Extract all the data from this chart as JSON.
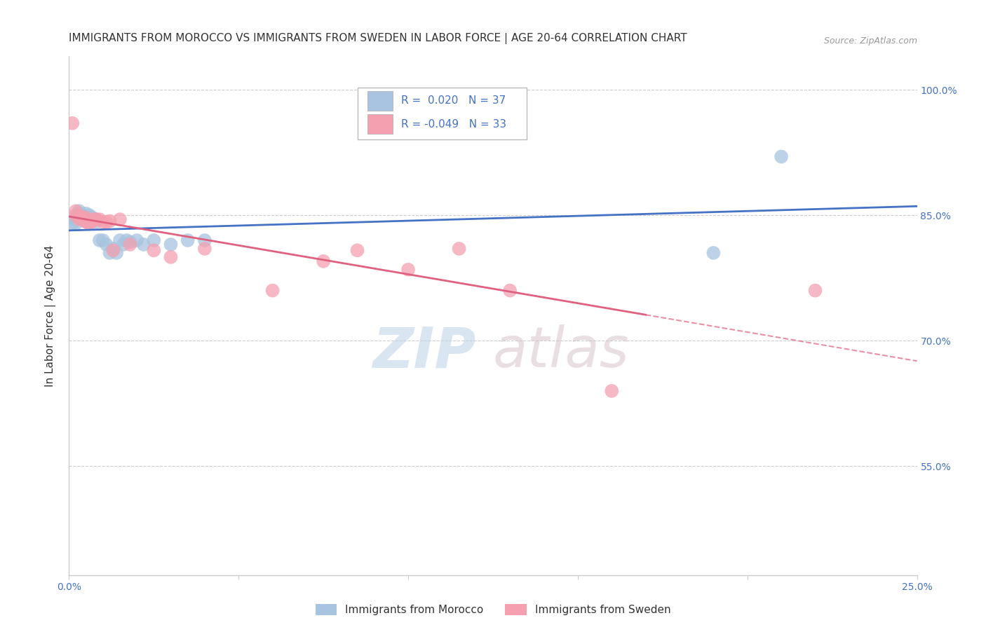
{
  "title": "IMMIGRANTS FROM MOROCCO VS IMMIGRANTS FROM SWEDEN IN LABOR FORCE | AGE 20-64 CORRELATION CHART",
  "source": "Source: ZipAtlas.com",
  "ylabel": "In Labor Force | Age 20-64",
  "xlim": [
    0.0,
    0.25
  ],
  "ylim": [
    0.42,
    1.04
  ],
  "yticks_right": [
    0.55,
    0.7,
    0.85,
    1.0
  ],
  "ytick_labels_right": [
    "55.0%",
    "70.0%",
    "85.0%",
    "100.0%"
  ],
  "morocco_color": "#a8c4e0",
  "sweden_color": "#f4a0b0",
  "trend_morocco_color": "#4472c4",
  "trend_sweden_color": "#e06080",
  "legend_r_morocco": "0.020",
  "legend_n_morocco": "37",
  "legend_r_sweden": "-0.049",
  "legend_n_sweden": "33",
  "legend_label_morocco": "Immigrants from Morocco",
  "legend_label_sweden": "Immigrants from Sweden",
  "morocco_x": [
    0.001,
    0.002,
    0.002,
    0.003,
    0.003,
    0.003,
    0.004,
    0.004,
    0.004,
    0.005,
    0.005,
    0.005,
    0.006,
    0.006,
    0.006,
    0.007,
    0.007,
    0.008,
    0.008,
    0.009,
    0.01,
    0.011,
    0.012,
    0.013,
    0.014,
    0.015,
    0.016,
    0.017,
    0.018,
    0.02,
    0.022,
    0.025,
    0.03,
    0.035,
    0.04,
    0.19,
    0.21
  ],
  "morocco_y": [
    0.84,
    0.845,
    0.84,
    0.85,
    0.852,
    0.855,
    0.845,
    0.848,
    0.85,
    0.843,
    0.847,
    0.852,
    0.843,
    0.847,
    0.85,
    0.845,
    0.847,
    0.845,
    0.842,
    0.82,
    0.82,
    0.815,
    0.805,
    0.81,
    0.805,
    0.82,
    0.815,
    0.82,
    0.818,
    0.82,
    0.815,
    0.82,
    0.815,
    0.82,
    0.82,
    0.805,
    0.92
  ],
  "sweden_x": [
    0.001,
    0.002,
    0.002,
    0.003,
    0.003,
    0.004,
    0.004,
    0.005,
    0.005,
    0.005,
    0.006,
    0.006,
    0.007,
    0.007,
    0.008,
    0.009,
    0.01,
    0.011,
    0.012,
    0.013,
    0.015,
    0.018,
    0.025,
    0.03,
    0.04,
    0.06,
    0.075,
    0.085,
    0.1,
    0.115,
    0.13,
    0.16,
    0.22
  ],
  "sweden_y": [
    0.96,
    0.85,
    0.855,
    0.845,
    0.848,
    0.845,
    0.848,
    0.842,
    0.843,
    0.847,
    0.84,
    0.842,
    0.843,
    0.845,
    0.845,
    0.845,
    0.842,
    0.842,
    0.843,
    0.808,
    0.845,
    0.815,
    0.808,
    0.8,
    0.81,
    0.76,
    0.795,
    0.808,
    0.785,
    0.81,
    0.76,
    0.64,
    0.76
  ],
  "background_color": "#ffffff",
  "grid_color": "#cccccc",
  "axis_color": "#cccccc",
  "text_color": "#333333",
  "blue_label_color": "#4472c4",
  "title_fontsize": 11,
  "axis_label_fontsize": 11,
  "tick_fontsize": 10,
  "watermark_zip_color": "#c0d4e8",
  "watermark_atlas_color": "#d4c0c8"
}
